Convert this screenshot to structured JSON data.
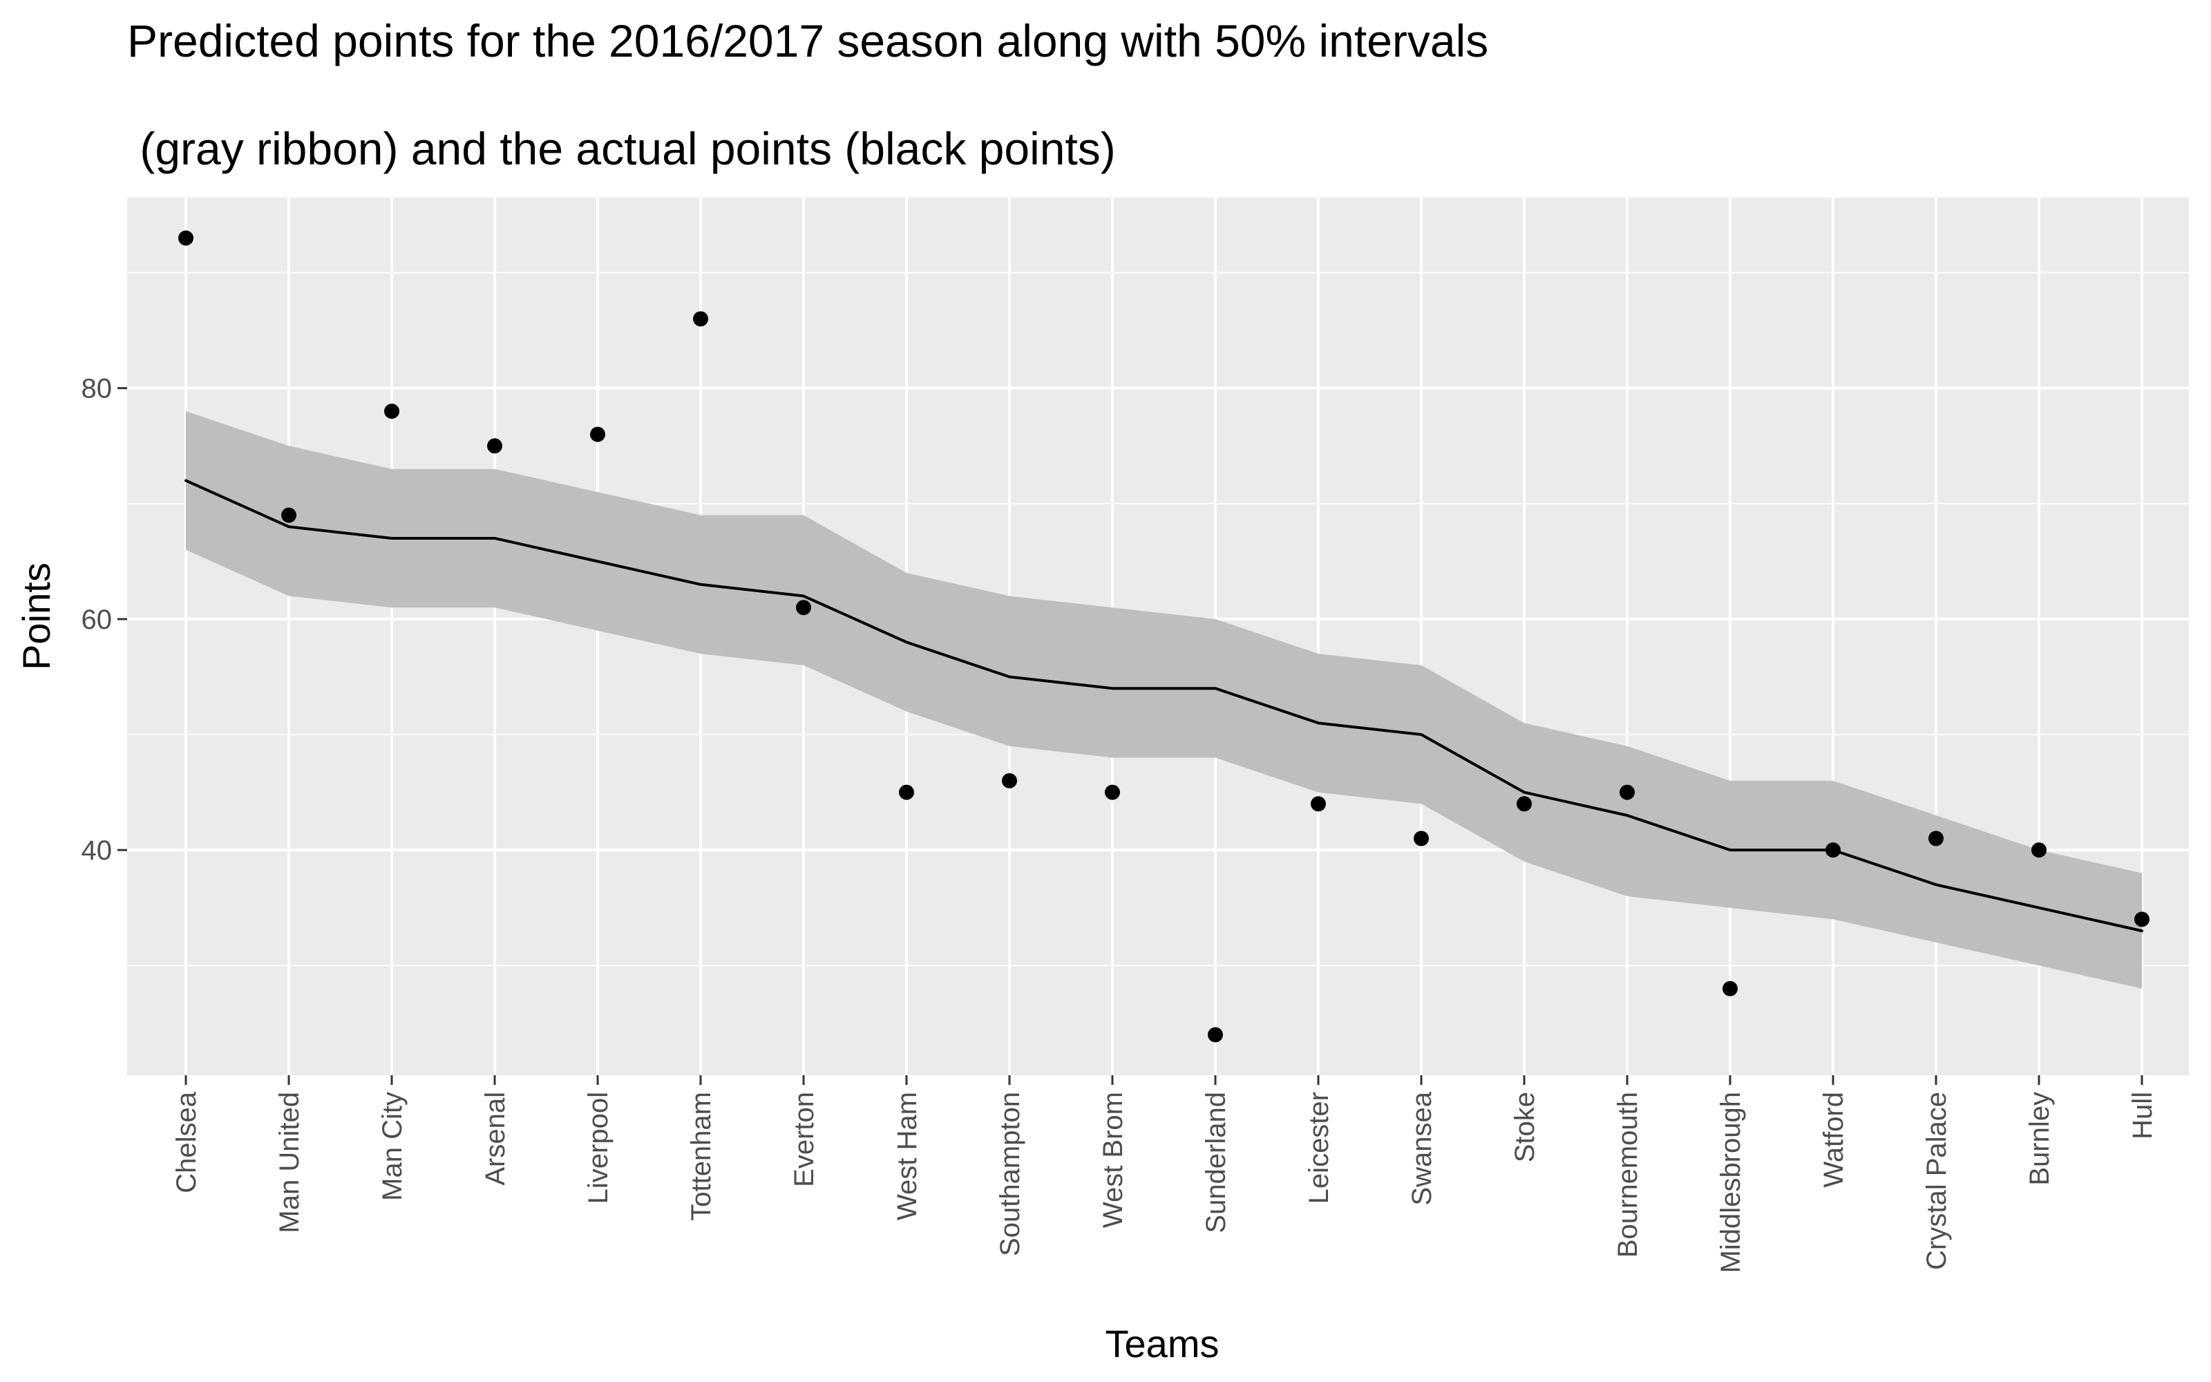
{
  "chart_data": {
    "type": "line",
    "title_line1": "Predicted points for the 2016/2017 season along with 50% intervals",
    "title_line2": " (gray ribbon) and the actual points (black points)",
    "xlabel": "Teams",
    "ylabel": "Points",
    "categories": [
      "Chelsea",
      "Man United",
      "Man City",
      "Arsenal",
      "Liverpool",
      "Tottenham",
      "Everton",
      "West Ham",
      "Southampton",
      "West Brom",
      "Sunderland",
      "Leicester",
      "Swansea",
      "Stoke",
      "Bournemouth",
      "Middlesbrough",
      "Watford",
      "Crystal Palace",
      "Burnley",
      "Hull"
    ],
    "series": [
      {
        "type": "line",
        "values": [
          72,
          68,
          67,
          67,
          65,
          63,
          62,
          58,
          55,
          54,
          54,
          51,
          50,
          45,
          43,
          40,
          40,
          37,
          35,
          33
        ]
      },
      {
        "type": "ribbon",
        "lower": [
          66,
          62,
          61,
          61,
          59,
          57,
          56,
          52,
          49,
          48,
          48,
          45,
          44,
          39,
          36,
          35,
          34,
          32,
          30,
          28
        ],
        "upper": [
          78,
          75,
          73,
          73,
          71,
          69,
          69,
          64,
          62,
          61,
          60,
          57,
          56,
          51,
          49,
          46,
          46,
          43,
          40,
          38
        ]
      },
      {
        "type": "scatter",
        "values": [
          93,
          69,
          78,
          75,
          76,
          86,
          61,
          45,
          46,
          45,
          24,
          44,
          41,
          44,
          45,
          28,
          40,
          41,
          40,
          34
        ]
      }
    ],
    "yticks": [
      40,
      60,
      80
    ],
    "ylim": [
      20.5,
      96.5
    ],
    "grid": true,
    "legend": "none",
    "colors": {
      "panel": "#EBEBEB",
      "grid": "#FFFFFF",
      "ribbon": "#BEBEBE",
      "line": "#000000",
      "points": "#000000",
      "tick_text": "#4D4D4D",
      "tick_marks": "#333333"
    }
  }
}
